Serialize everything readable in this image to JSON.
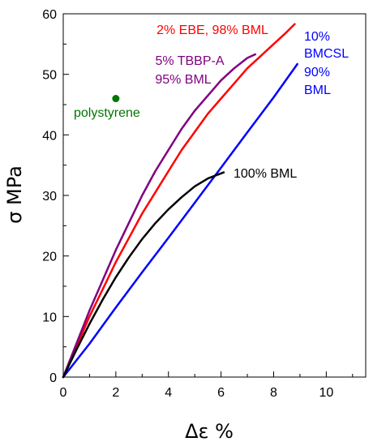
{
  "chart_data": {
    "type": "line",
    "xlabel": "Δε %",
    "ylabel": "σ MPa",
    "xlim": [
      0,
      11.5
    ],
    "ylim": [
      0,
      60
    ],
    "x_ticks": [
      0,
      2,
      4,
      6,
      8,
      10
    ],
    "y_ticks": [
      0,
      10,
      20,
      30,
      40,
      50,
      60
    ],
    "grid": false,
    "series": [
      {
        "name": "2% EBE, 98% BML",
        "color": "#ff0000",
        "x": [
          0,
          0.5,
          1,
          1.5,
          2,
          2.5,
          3,
          3.5,
          4,
          4.5,
          5,
          5.5,
          6,
          6.5,
          7,
          7.5,
          8,
          8.5,
          8.8
        ],
        "y": [
          0,
          5.0,
          10.0,
          14.5,
          19.0,
          23.0,
          27.0,
          30.5,
          34.0,
          37.5,
          40.5,
          43.5,
          46.0,
          48.5,
          51.0,
          53.0,
          55.0,
          57.0,
          58.3
        ]
      },
      {
        "name": "5% TBBP-A 95% BML",
        "color": "#800080",
        "x": [
          0,
          0.5,
          1,
          1.5,
          2,
          2.5,
          3,
          3.5,
          4,
          4.5,
          5,
          5.5,
          6,
          6.5,
          7,
          7.3
        ],
        "y": [
          0,
          5.5,
          11.0,
          16.0,
          21.0,
          25.5,
          30.0,
          34.0,
          37.5,
          41.0,
          44.0,
          46.5,
          49.0,
          51.0,
          52.7,
          53.3
        ]
      },
      {
        "name": "10% BMCSL 90% BML",
        "color": "#0000ff",
        "x": [
          0,
          1,
          2,
          3,
          4,
          5,
          6,
          7,
          8,
          8.9
        ],
        "y": [
          0,
          5.5,
          11.5,
          17.3,
          23.0,
          28.8,
          34.6,
          40.4,
          46.2,
          51.7
        ]
      },
      {
        "name": "100% BML",
        "color": "#000000",
        "x": [
          0,
          0.5,
          1,
          1.5,
          2,
          2.5,
          3,
          3.5,
          4,
          4.5,
          5,
          5.5,
          6.1
        ],
        "y": [
          0,
          4.5,
          8.8,
          12.8,
          16.5,
          19.8,
          22.8,
          25.4,
          27.7,
          29.7,
          31.5,
          32.8,
          33.8
        ]
      },
      {
        "name": "polystyrene",
        "color": "#007700",
        "type": "point",
        "x": [
          2.0
        ],
        "y": [
          46.0
        ]
      }
    ],
    "labels": {
      "red": "2% EBE, 98% BML",
      "purple_line1": "5% TBBP-A",
      "purple_line2": "95% BML",
      "blue_line1": "10%",
      "blue_line2": "BMCSL",
      "blue_line3": "90%",
      "blue_line4": "BML",
      "black": "100% BML",
      "green": "polystyrene"
    }
  }
}
